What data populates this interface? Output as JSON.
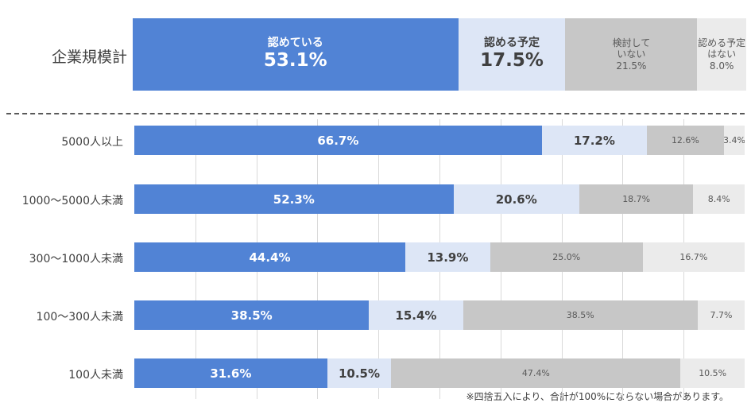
{
  "chart_data": {
    "type": "bar",
    "stacked": true,
    "orientation": "horizontal",
    "series_colors": [
      "#5183d5",
      "#dde6f6",
      "#c7c7c7",
      "#ebebeb"
    ],
    "total": {
      "category": "企業規模計",
      "segments": [
        {
          "label": "認めている",
          "value": 53.1,
          "text": "53.1%"
        },
        {
          "label": "認める予定",
          "value": 17.5,
          "text": "17.5%"
        },
        {
          "label": "検討して\nいない",
          "value": 21.5,
          "text": "21.5%"
        },
        {
          "label": "認める予定\nはない",
          "value": 8.0,
          "text": "8.0%"
        }
      ]
    },
    "categories": [
      "5000人以上",
      "1000～5000人未満",
      "300～1000人未満",
      "100～300人未満",
      "100人未満"
    ],
    "series": [
      {
        "values": [
          66.7,
          52.3,
          44.4,
          38.5,
          31.6
        ],
        "labels": [
          "66.7%",
          "52.3%",
          "44.4%",
          "38.5%",
          "31.6%"
        ]
      },
      {
        "values": [
          17.2,
          20.6,
          13.9,
          15.4,
          10.5
        ],
        "labels": [
          "17.2%",
          "20.6%",
          "13.9%",
          "15.4%",
          "10.5%"
        ]
      },
      {
        "values": [
          12.6,
          18.7,
          25.0,
          38.5,
          47.4
        ],
        "labels": [
          "12.6%",
          "18.7%",
          "25.0%",
          "38.5%",
          "47.4%"
        ]
      },
      {
        "values": [
          3.4,
          8.4,
          16.7,
          7.7,
          10.5
        ],
        "labels": [
          "3.4%",
          "8.4%",
          "16.7%",
          "7.7%",
          "10.5%"
        ]
      }
    ],
    "note": "※四捨五入により、合計が100%にならない場合があります。",
    "grid": true,
    "legend": "none"
  }
}
